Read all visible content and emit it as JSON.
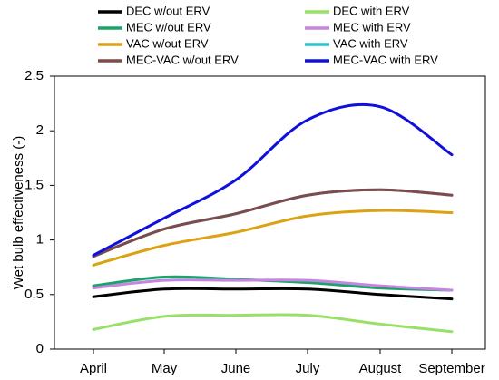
{
  "chart_data": {
    "type": "line",
    "title": "",
    "xlabel": "",
    "ylabel": "Wet bulb effectiveness (-)",
    "categories": [
      "April",
      "May",
      "June",
      "July",
      "August",
      "September"
    ],
    "ylim": [
      0,
      2.5
    ],
    "yticks": [
      0,
      0.5,
      1,
      1.5,
      2,
      2.5
    ],
    "ytick_labels": [
      "0",
      "0.5",
      "1",
      "1.5",
      "2",
      "2.5"
    ],
    "grid": false,
    "legend_position": "top",
    "series": [
      {
        "name": "DEC w/out ERV",
        "color": "#000000",
        "values": [
          0.48,
          0.55,
          0.55,
          0.55,
          0.5,
          0.46
        ]
      },
      {
        "name": "DEC with ERV",
        "color": "#99e066",
        "values": [
          0.18,
          0.3,
          0.31,
          0.31,
          0.23,
          0.16
        ]
      },
      {
        "name": "MEC w/out ERV",
        "color": "#1aa36b",
        "values": [
          0.58,
          0.66,
          0.64,
          0.61,
          0.56,
          0.54
        ]
      },
      {
        "name": "MEC with ERV",
        "color": "#c585e0",
        "values": [
          0.56,
          0.63,
          0.63,
          0.63,
          0.58,
          0.54
        ]
      },
      {
        "name": "VAC w/out ERV",
        "color": "#dba314",
        "values": [
          0.77,
          0.95,
          1.07,
          1.22,
          1.27,
          1.25
        ]
      },
      {
        "name": "VAC with ERV",
        "color": "#29c4cc",
        "values": [
          0.85,
          1.1,
          1.24,
          1.41,
          1.46,
          1.41
        ]
      },
      {
        "name": "MEC-VAC w/out ERV",
        "color": "#7f4a4a",
        "values": [
          0.85,
          1.1,
          1.24,
          1.41,
          1.46,
          1.41
        ]
      },
      {
        "name": "MEC-VAC with ERV",
        "color": "#1010dd",
        "values": [
          0.86,
          1.2,
          1.55,
          2.1,
          2.22,
          1.78
        ]
      }
    ]
  }
}
